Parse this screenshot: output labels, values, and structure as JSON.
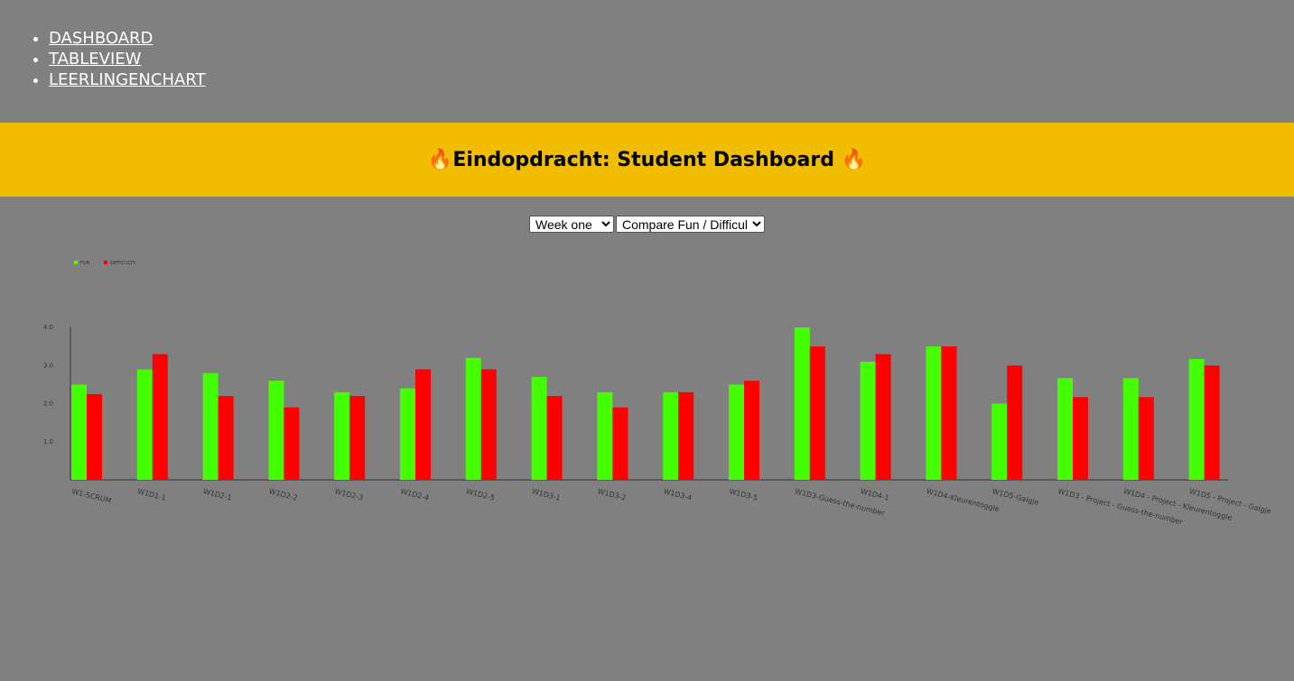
{
  "nav": {
    "items": [
      {
        "label": "DASHBOARD"
      },
      {
        "label": "TABLEVIEW"
      },
      {
        "label": "LEERLINGENCHART"
      }
    ]
  },
  "header": {
    "title": "Eindopdracht: Student Dashboard ",
    "icon_left": "🔥",
    "icon_right": "🔥"
  },
  "controls": {
    "week_select": {
      "selected": "Week one"
    },
    "mode_select": {
      "selected": "Compare Fun / Difficulty"
    }
  },
  "colors": {
    "fun": "#44ff00",
    "difficulty": "#ff0000",
    "banner": "#f1bd00",
    "background": "#808080"
  },
  "chart_data": {
    "type": "bar",
    "categories": [
      "W1-SCRUM",
      "W1D1-1",
      "W1D2-1",
      "W1D2-2",
      "W1D2-3",
      "W1D2-4",
      "W1D2-5",
      "W1D3-1",
      "W1D3-2",
      "W1D3-4",
      "W1D3-5",
      "W1D3-Guess-the-number",
      "W1D4-1",
      "W1D4-Kleurentoggle",
      "W1D5-Galgje",
      "W1D3 - Project - Guess-the-number",
      "W1D4 - Project - Kleurentoggle",
      "W1D5 - Project - Galgje"
    ],
    "series": [
      {
        "name": "FUN",
        "values": [
          2.5,
          2.9,
          2.8,
          2.6,
          2.3,
          2.4,
          3.2,
          2.7,
          2.3,
          2.3,
          2.5,
          4.0,
          3.1,
          3.5,
          2.0,
          2.67,
          2.67,
          3.17
        ]
      },
      {
        "name": "DIFFICULTY",
        "values": [
          2.25,
          3.3,
          2.2,
          1.9,
          2.2,
          2.9,
          2.9,
          2.2,
          1.9,
          2.3,
          2.6,
          3.5,
          3.3,
          3.5,
          3.0,
          2.17,
          2.17,
          3.0
        ]
      }
    ],
    "y_ticks": [
      "1.0",
      "2.0",
      "3.0",
      "4.0"
    ],
    "ylim": [
      0,
      4
    ],
    "legend": "top-left",
    "grid": false
  }
}
